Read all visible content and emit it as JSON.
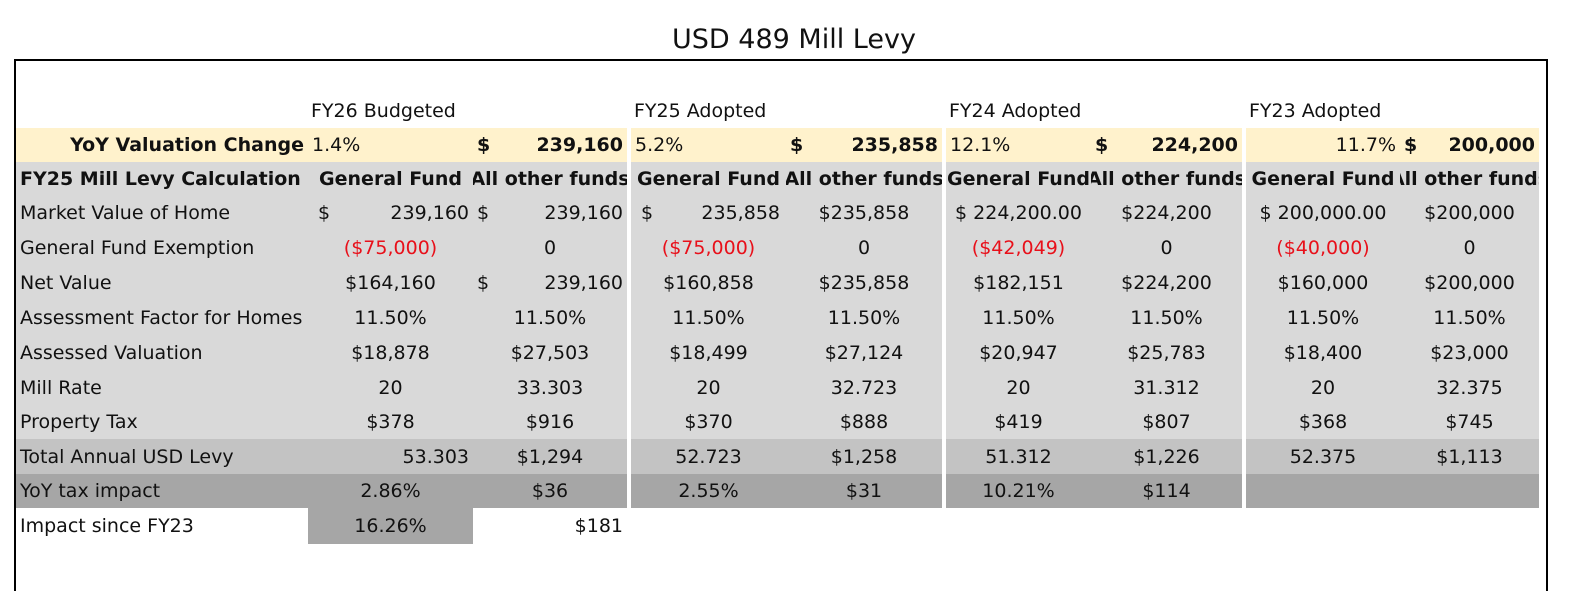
{
  "title": "USD 489 Mill Levy",
  "year_headers": [
    "FY26 Budgeted",
    "FY25 Adopted",
    "FY24 Adopted",
    "FY23 Adopted"
  ],
  "valuation": {
    "label": "YoY Valuation Change",
    "cols": [
      {
        "pct": "1.4%",
        "cur": "$",
        "amt": "239,160"
      },
      {
        "pct": "5.2%",
        "cur": "$",
        "amt": "235,858"
      },
      {
        "pct": "12.1%",
        "cur": "$",
        "amt": "224,200"
      },
      {
        "pct": "11.7%",
        "cur": "$",
        "amt": "200,000"
      }
    ]
  },
  "calc_header": {
    "label": "FY25 Mill Levy Calculation",
    "general": "General Fund",
    "other": "All other funds"
  },
  "rows": {
    "market_value": {
      "label": "Market Value of Home",
      "vals": [
        {
          "cur": "$",
          "amt": "239,160"
        },
        {
          "cur": "$",
          "amt": "239,160"
        },
        {
          "cur": "$",
          "amt": "235,858"
        },
        {
          "amt": "$235,858"
        },
        {
          "cur": "$",
          "amt": "224,200.00"
        },
        {
          "amt": "$224,200"
        },
        {
          "cur": "$",
          "amt": "200,000.00"
        },
        {
          "amt": "$200,000"
        }
      ]
    },
    "exemption": {
      "label": "General Fund Exemption",
      "vals": [
        "($75,000)",
        "0",
        "($75,000)",
        "0",
        "($42,049)",
        "0",
        "($40,000)",
        "0"
      ]
    },
    "net_value": {
      "label": "Net Value",
      "vals": [
        {
          "amt": "$164,160"
        },
        {
          "cur": "$",
          "amt": "239,160"
        },
        {
          "amt": "$160,858"
        },
        {
          "amt": "$235,858"
        },
        {
          "amt": "$182,151"
        },
        {
          "amt": "$224,200"
        },
        {
          "amt": "$160,000"
        },
        {
          "amt": "$200,000"
        }
      ]
    },
    "assessment_factor": {
      "label": "Assessment Factor for Homes",
      "vals": [
        "11.50%",
        "11.50%",
        "11.50%",
        "11.50%",
        "11.50%",
        "11.50%",
        "11.50%",
        "11.50%"
      ]
    },
    "assessed_valuation": {
      "label": "Assessed Valuation",
      "vals": [
        "$18,878",
        "$27,503",
        "$18,499",
        "$27,124",
        "$20,947",
        "$25,783",
        "$18,400",
        "$23,000"
      ]
    },
    "mill_rate": {
      "label": "Mill Rate",
      "vals": [
        "20",
        "33.303",
        "20",
        "32.723",
        "20",
        "31.312",
        "20",
        "32.375"
      ]
    },
    "property_tax": {
      "label": "Property Tax",
      "vals": [
        "$378",
        "$916",
        "$370",
        "$888",
        "$419",
        "$807",
        "$368",
        "$745"
      ]
    },
    "total_levy": {
      "label": "Total Annual USD Levy",
      "vals": [
        "53.303",
        "$1,294",
        "52.723",
        "$1,258",
        "51.312",
        "$1,226",
        "52.375",
        "$1,113"
      ]
    },
    "yoy_impact": {
      "label": "YoY tax impact",
      "vals": [
        "2.86%",
        "$36",
        "2.55%",
        "$31",
        "10.21%",
        "$114",
        "",
        ""
      ]
    },
    "impact_since": {
      "label": "Impact since FY23",
      "vals": [
        "16.26%",
        "$181"
      ]
    }
  },
  "colors": {
    "yellow": "#fff2cc",
    "light_gray": "#d9d9d9",
    "mid_gray": "#c3c3c3",
    "dark_gray": "#a6a6a6",
    "negative": "#e8101a"
  }
}
